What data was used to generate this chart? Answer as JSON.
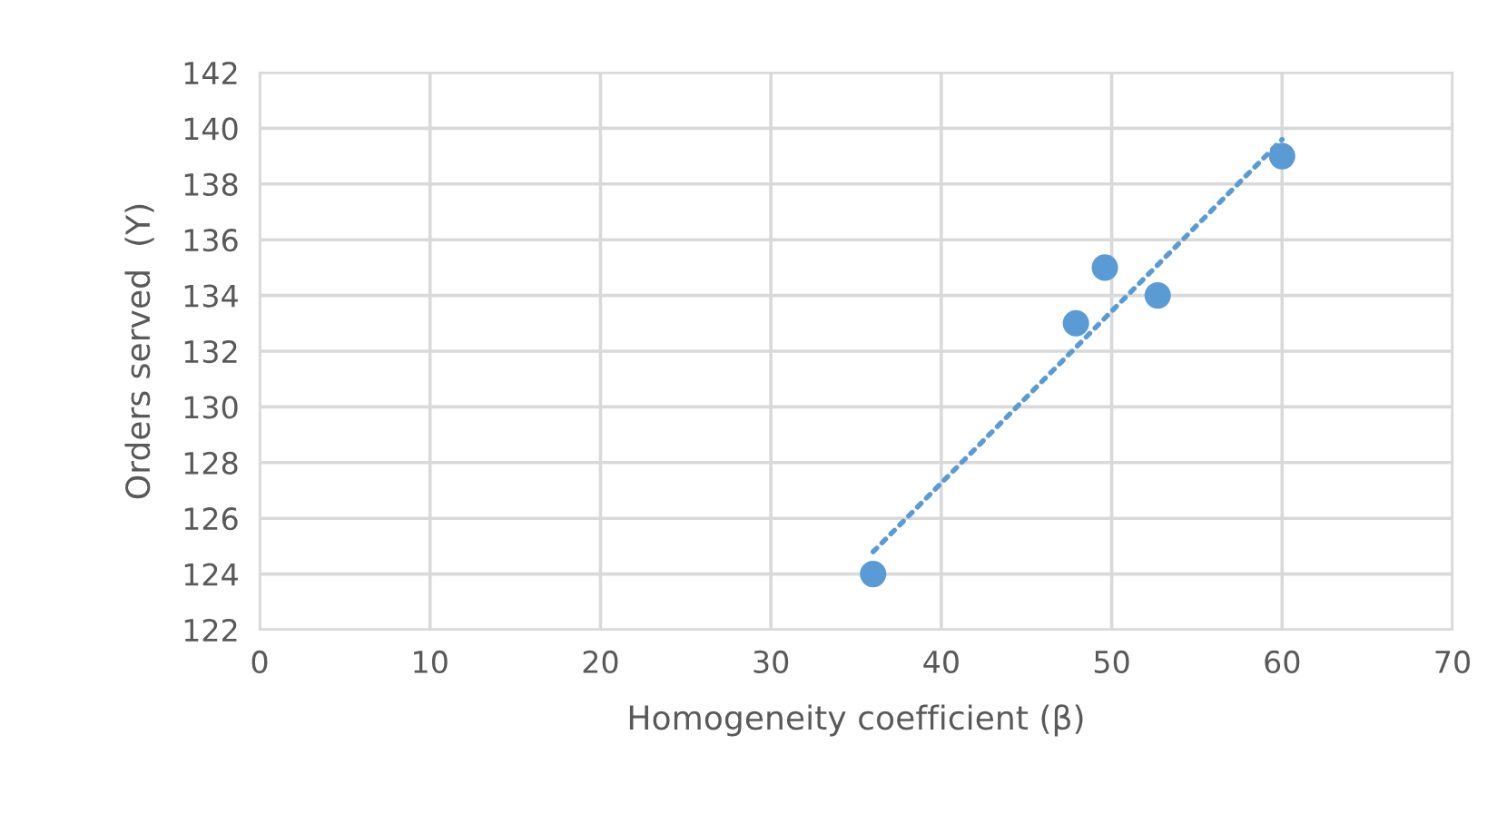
{
  "chart_data": {
    "type": "scatter",
    "xlabel": "Homogeneity coefficient (β)",
    "ylabel": "Orders served  (Y)",
    "xlim": [
      0,
      70
    ],
    "xticks": [
      0,
      10,
      20,
      30,
      40,
      50,
      60,
      70
    ],
    "ylim": [
      122,
      142
    ],
    "yticks": [
      122,
      124,
      126,
      128,
      130,
      132,
      134,
      136,
      138,
      140,
      142
    ],
    "grid": true,
    "series": [
      {
        "marker": "circle",
        "color": "#5b9bd5",
        "x": [
          36,
          47.9,
          49.6,
          52.7,
          60
        ],
        "values": [
          124,
          133,
          135,
          134,
          139
        ]
      },
      {
        "type": "line",
        "color": "#5b9bd5",
        "line_style": "dotted",
        "x": [
          36,
          60
        ],
        "values": [
          124.8,
          139.6
        ]
      }
    ]
  }
}
